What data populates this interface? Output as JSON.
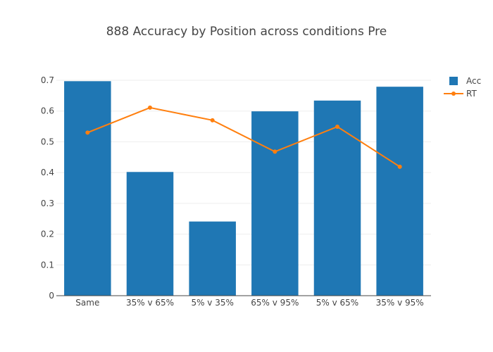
{
  "chart_data": {
    "type": "bar",
    "title": "888 Accuracy by Position across conditions Pre",
    "xlabel": "",
    "ylabel": "",
    "categories": [
      "Same",
      "35% v 65%",
      "5% v 35%",
      "65% v 95%",
      "5% v 65%",
      "35% v 95%"
    ],
    "ylim": [
      0,
      0.7
    ],
    "yticks": [
      0,
      0.1,
      0.2,
      0.3,
      0.4,
      0.5,
      0.6,
      0.7
    ],
    "ytick_labels": [
      "0",
      "0.1",
      "0.2",
      "0.3",
      "0.4",
      "0.5",
      "0.6",
      "0.7"
    ],
    "grid": true,
    "legend_position": "top-right",
    "series": [
      {
        "name": "Acc",
        "type": "bar",
        "color": "#1f77b4",
        "values": [
          0.697,
          0.402,
          0.241,
          0.599,
          0.634,
          0.679
        ]
      },
      {
        "name": "RT",
        "type": "line",
        "color": "#ff7f0e",
        "x_categories": [
          "Same",
          "35% v 65%",
          "5% v 35%",
          "65% v 95%",
          "5% v 65%",
          "35% v 95%"
        ],
        "values": [
          0.53,
          0.611,
          0.57,
          0.468,
          0.549,
          0.419
        ]
      }
    ]
  }
}
